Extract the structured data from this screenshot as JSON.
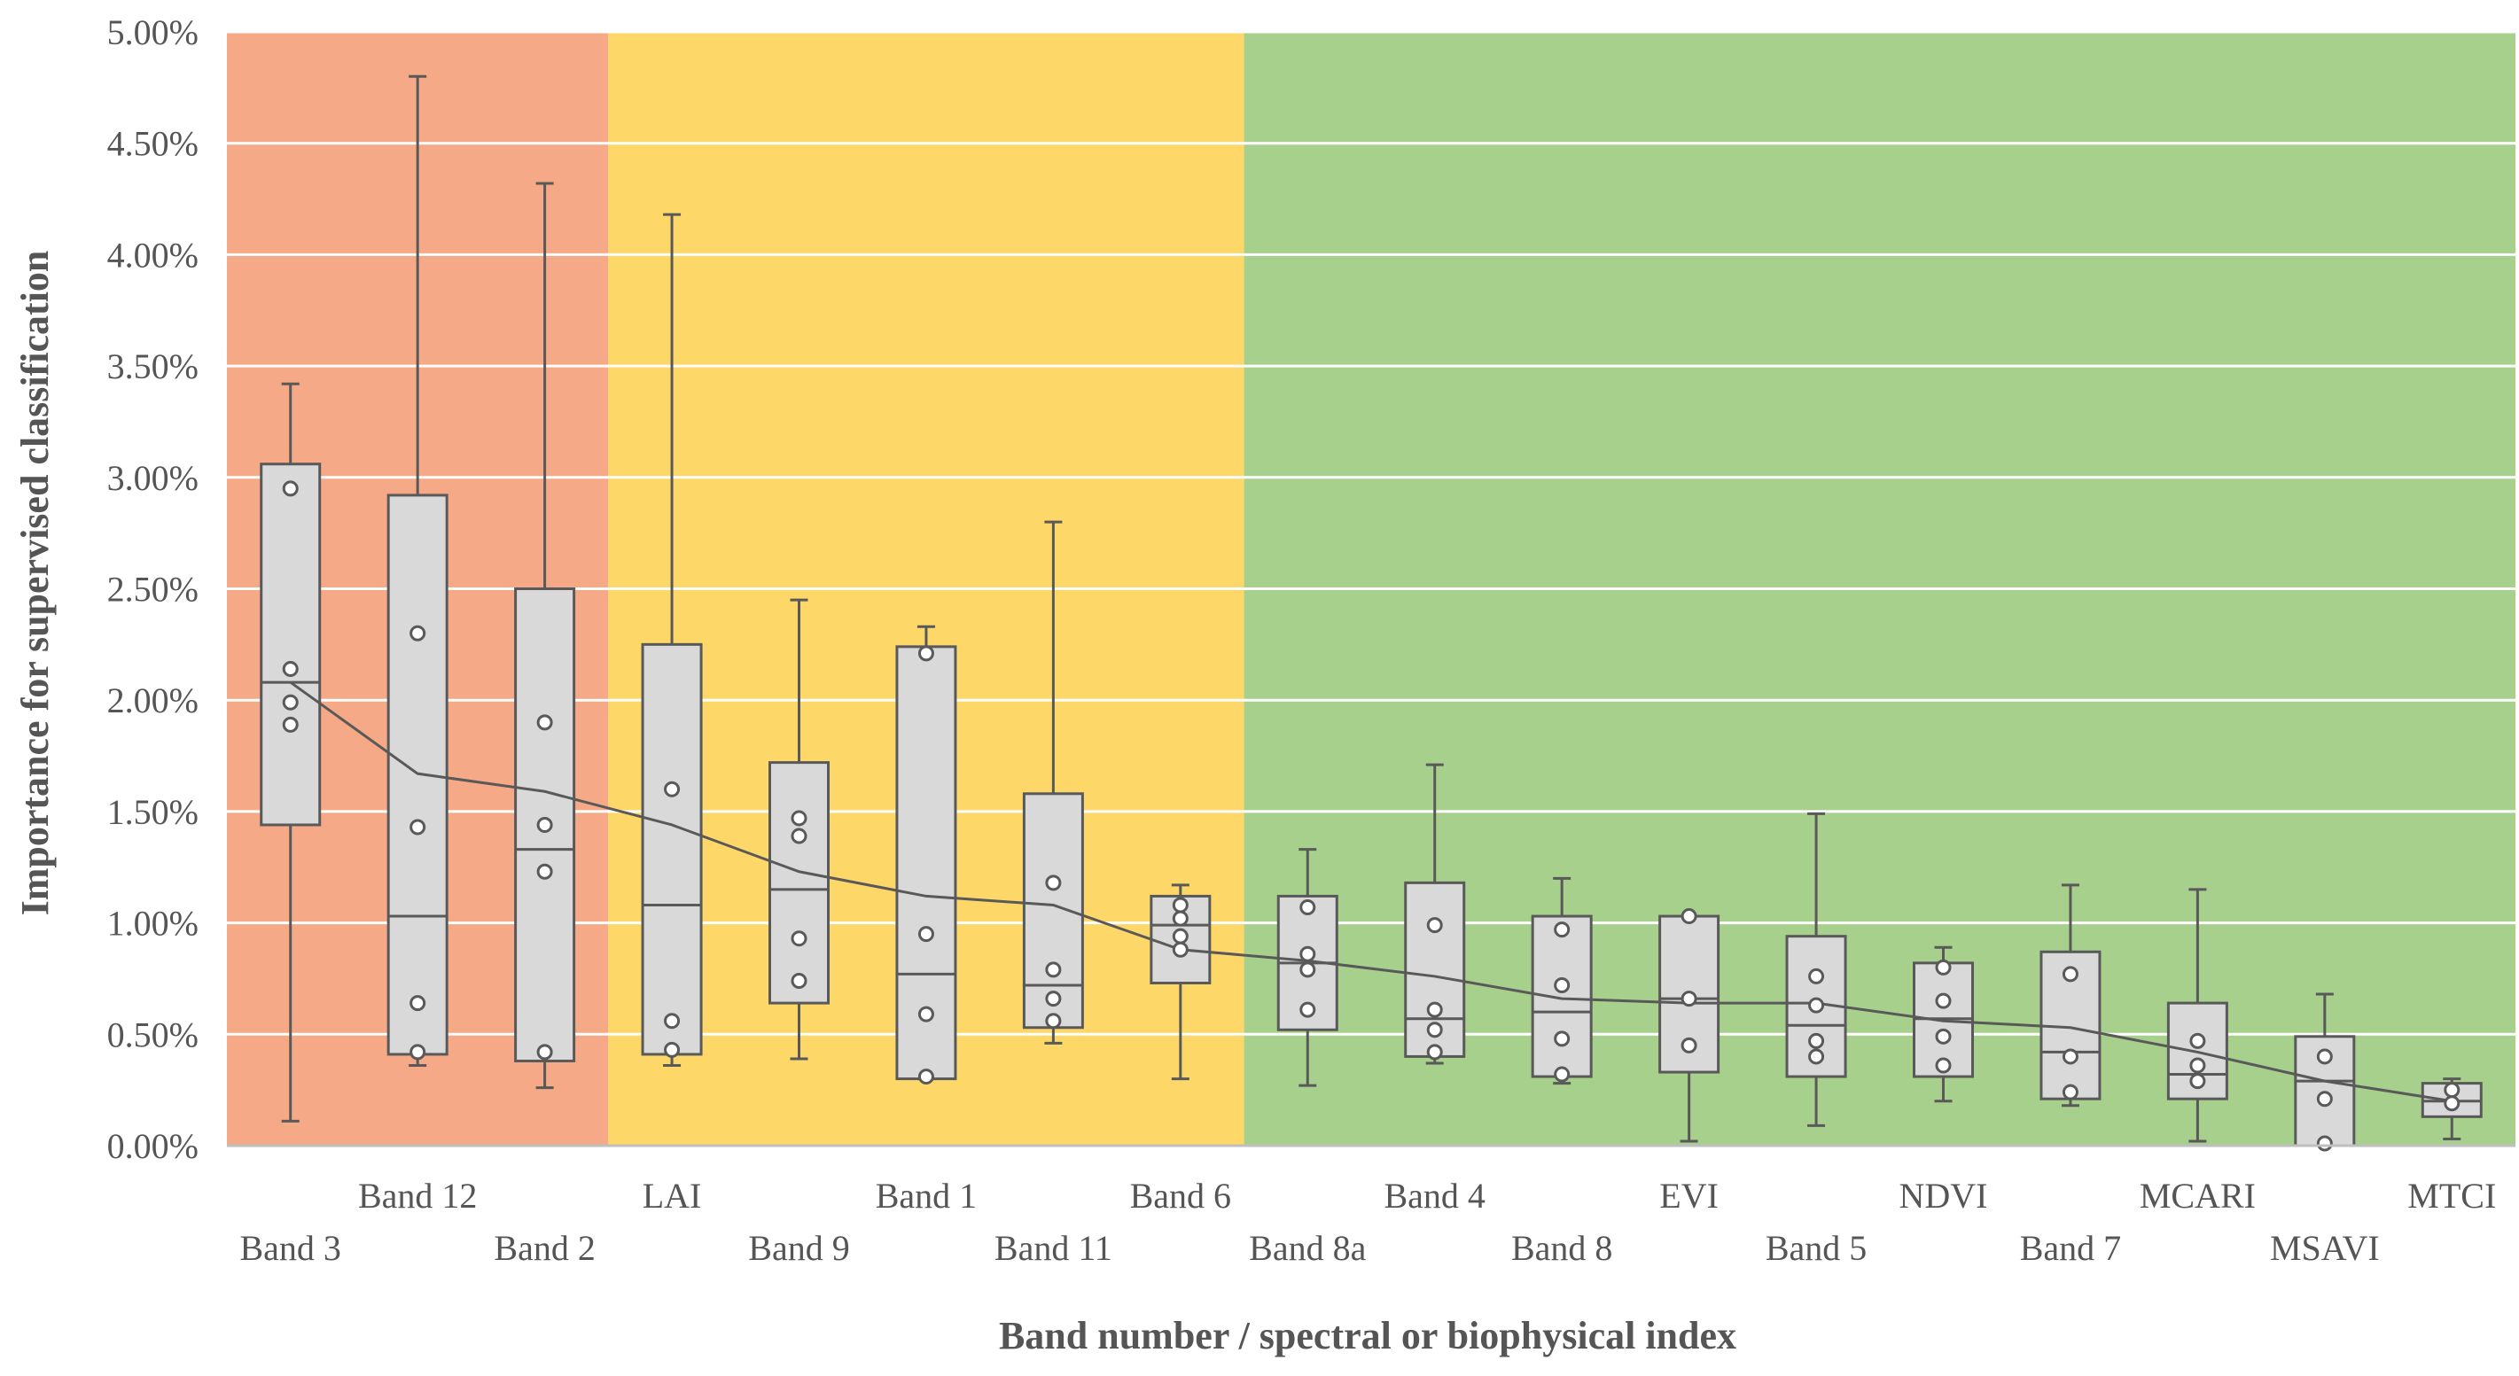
{
  "chart_data": {
    "type": "boxplot",
    "xlabel": "Band number / spectral or biophysical index",
    "ylabel": "Importance for supervised classification",
    "ylim": [
      0,
      0.05
    ],
    "ytick_step": 0.005,
    "ytick_labels": [
      "0.00%",
      "0.50%",
      "1.00%",
      "1.50%",
      "2.00%",
      "2.50%",
      "3.00%",
      "3.50%",
      "4.00%",
      "4.50%",
      "5.00%"
    ],
    "grid": true,
    "regions": [
      {
        "name": "red",
        "from_category": "Band 3",
        "to_category": "Band 2",
        "color": "#f6a986"
      },
      {
        "name": "yellow",
        "from_category": "LAI",
        "to_category": "Band 6",
        "color": "#fdd868"
      },
      {
        "name": "green",
        "from_category": "Band 8a",
        "to_category": "MTCI",
        "color": "#a7d08c"
      }
    ],
    "colors": {
      "box_fill": "#d9d9d9",
      "box_stroke": "#595959",
      "grid": "#ffffff",
      "mean_line": "#595959",
      "axis": "#bfbfbf"
    },
    "categories": [
      "Band 3",
      "Band 12",
      "Band 2",
      "LAI",
      "Band 9",
      "Band 1",
      "Band 11",
      "Band 6",
      "Band 8a",
      "Band 4",
      "Band 8",
      "EVI",
      "Band 5",
      "NDVI",
      "Band 7",
      "MCARI",
      "MSAVI",
      "MTCI"
    ],
    "boxes": [
      {
        "category": "Band 3",
        "min": 0.0011,
        "q1": 0.0144,
        "median": 0.0208,
        "q3": 0.0306,
        "max": 0.0342,
        "mean": 0.0208,
        "points": [
          0.0295,
          0.0214,
          0.0199,
          0.0189
        ]
      },
      {
        "category": "Band 12",
        "min": 0.0036,
        "q1": 0.0041,
        "median": 0.0103,
        "q3": 0.0292,
        "max": 0.048,
        "mean": 0.0167,
        "points": [
          0.023,
          0.0143,
          0.0064,
          0.0042
        ]
      },
      {
        "category": "Band 2",
        "min": 0.0026,
        "q1": 0.0038,
        "median": 0.0133,
        "q3": 0.025,
        "max": 0.0432,
        "mean": 0.0159,
        "points": [
          0.019,
          0.0144,
          0.0123,
          0.0042
        ]
      },
      {
        "category": "LAI",
        "min": 0.0036,
        "q1": 0.0041,
        "median": 0.0108,
        "q3": 0.0225,
        "max": 0.0418,
        "mean": 0.0144,
        "points": [
          0.016,
          0.0056,
          0.0043
        ]
      },
      {
        "category": "Band 9",
        "min": 0.0039,
        "q1": 0.0064,
        "median": 0.0115,
        "q3": 0.0172,
        "max": 0.0245,
        "mean": 0.0123,
        "points": [
          0.0147,
          0.0139,
          0.0093,
          0.0074
        ]
      },
      {
        "category": "Band 1",
        "min": 0.003,
        "q1": 0.003,
        "median": 0.0077,
        "q3": 0.0224,
        "max": 0.0233,
        "mean": 0.0112,
        "points": [
          0.0221,
          0.0095,
          0.0059,
          0.0031
        ]
      },
      {
        "category": "Band 11",
        "min": 0.0046,
        "q1": 0.0053,
        "median": 0.0072,
        "q3": 0.0158,
        "max": 0.028,
        "mean": 0.0108,
        "points": [
          0.0118,
          0.0079,
          0.0066,
          0.0056
        ]
      },
      {
        "category": "Band 6",
        "min": 0.003,
        "q1": 0.0073,
        "median": 0.0099,
        "q3": 0.0112,
        "max": 0.0117,
        "mean": 0.0088,
        "points": [
          0.0108,
          0.0102,
          0.0094,
          0.0088
        ]
      },
      {
        "category": "Band 8a",
        "min": 0.0027,
        "q1": 0.0052,
        "median": 0.0082,
        "q3": 0.0112,
        "max": 0.0133,
        "mean": 0.0083,
        "points": [
          0.0107,
          0.0086,
          0.0079,
          0.0061
        ]
      },
      {
        "category": "Band 4",
        "min": 0.0037,
        "q1": 0.004,
        "median": 0.0057,
        "q3": 0.0118,
        "max": 0.0171,
        "mean": 0.0076,
        "points": [
          0.0099,
          0.0061,
          0.0052,
          0.0042
        ]
      },
      {
        "category": "Band 8",
        "min": 0.0028,
        "q1": 0.0031,
        "median": 0.006,
        "q3": 0.0103,
        "max": 0.012,
        "mean": 0.0066,
        "points": [
          0.0097,
          0.0072,
          0.0048,
          0.0032
        ]
      },
      {
        "category": "EVI",
        "min": 0.0002,
        "q1": 0.0033,
        "median": 0.0066,
        "q3": 0.0103,
        "max": 0.0103,
        "mean": 0.0064,
        "points": [
          0.0103,
          0.0066,
          0.0045
        ]
      },
      {
        "category": "Band 5",
        "min": 0.0009,
        "q1": 0.0031,
        "median": 0.0054,
        "q3": 0.0094,
        "max": 0.0149,
        "mean": 0.0064,
        "points": [
          0.0076,
          0.0063,
          0.0047,
          0.004
        ]
      },
      {
        "category": "NDVI",
        "min": 0.002,
        "q1": 0.0031,
        "median": 0.0057,
        "q3": 0.0082,
        "max": 0.0089,
        "mean": 0.0056,
        "points": [
          0.008,
          0.0065,
          0.0049,
          0.0036
        ]
      },
      {
        "category": "Band 7",
        "min": 0.0018,
        "q1": 0.0021,
        "median": 0.0042,
        "q3": 0.0087,
        "max": 0.0117,
        "mean": 0.0053,
        "points": [
          0.0077,
          0.004,
          0.0024
        ]
      },
      {
        "category": "MCARI",
        "min": 0.0002,
        "q1": 0.0021,
        "median": 0.0032,
        "q3": 0.0064,
        "max": 0.0115,
        "mean": 0.0042,
        "points": [
          0.0047,
          0.0036,
          0.0029
        ]
      },
      {
        "category": "MSAVI",
        "min": 0.0,
        "q1": 0.0,
        "median": 0.0029,
        "q3": 0.0049,
        "max": 0.0068,
        "mean": 0.0029,
        "points": [
          0.004,
          0.0021,
          0.0001
        ]
      },
      {
        "category": "MTCI",
        "min": 0.0003,
        "q1": 0.0013,
        "median": 0.002,
        "q3": 0.0028,
        "max": 0.003,
        "mean": 0.002,
        "points": [
          0.0025,
          0.0019
        ]
      }
    ]
  }
}
